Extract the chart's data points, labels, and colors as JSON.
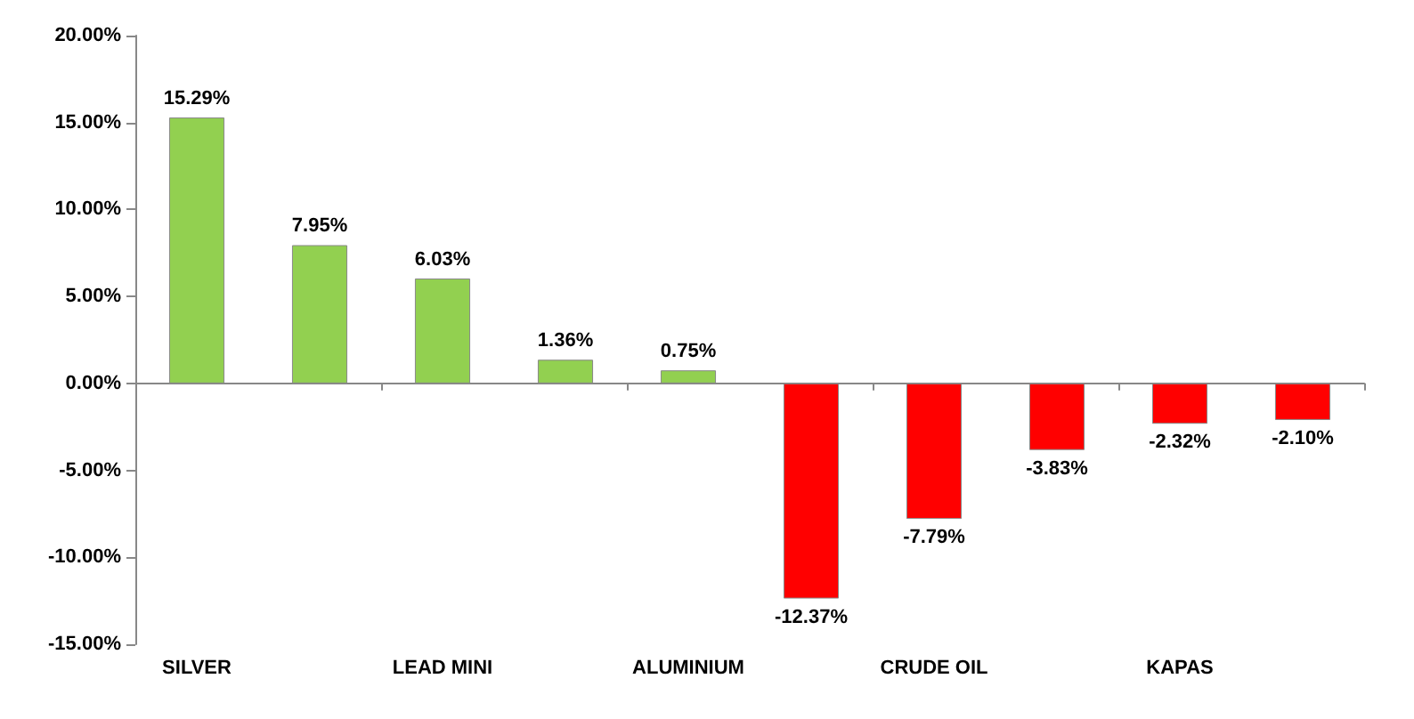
{
  "chart_data": {
    "type": "bar",
    "categories": [
      "SILVER",
      null,
      "LEAD MINI",
      null,
      "ALUMINIUM",
      null,
      "CRUDE OIL",
      null,
      "KAPAS",
      null
    ],
    "values": [
      15.29,
      7.95,
      6.03,
      1.36,
      0.75,
      -12.37,
      -7.79,
      -3.83,
      -2.32,
      -2.1
    ],
    "colors": [
      "#92d050",
      "#92d050",
      "#92d050",
      "#92d050",
      "#92d050",
      "#ff0000",
      "#ff0000",
      "#ff0000",
      "#ff0000",
      "#ff0000"
    ],
    "value_labels": [
      "15.29%",
      "7.95%",
      "6.03%",
      "1.36%",
      "0.75%",
      "-12.37%",
      "-7.79%",
      "-3.83%",
      "-2.32%",
      "-2.10%"
    ],
    "ylim": [
      -15,
      20
    ],
    "yticks": [
      {
        "value": -15,
        "label": "-15.00%"
      },
      {
        "value": -10,
        "label": "-10.00%"
      },
      {
        "value": -5,
        "label": "-5.00%"
      },
      {
        "value": 0,
        "label": "0.00%"
      },
      {
        "value": 5,
        "label": "5.00%"
      },
      {
        "value": 10,
        "label": "10.00%"
      },
      {
        "value": 15,
        "label": "15.00%"
      },
      {
        "value": 20,
        "label": "20.00%"
      }
    ],
    "tick_labels": "xy"
  }
}
